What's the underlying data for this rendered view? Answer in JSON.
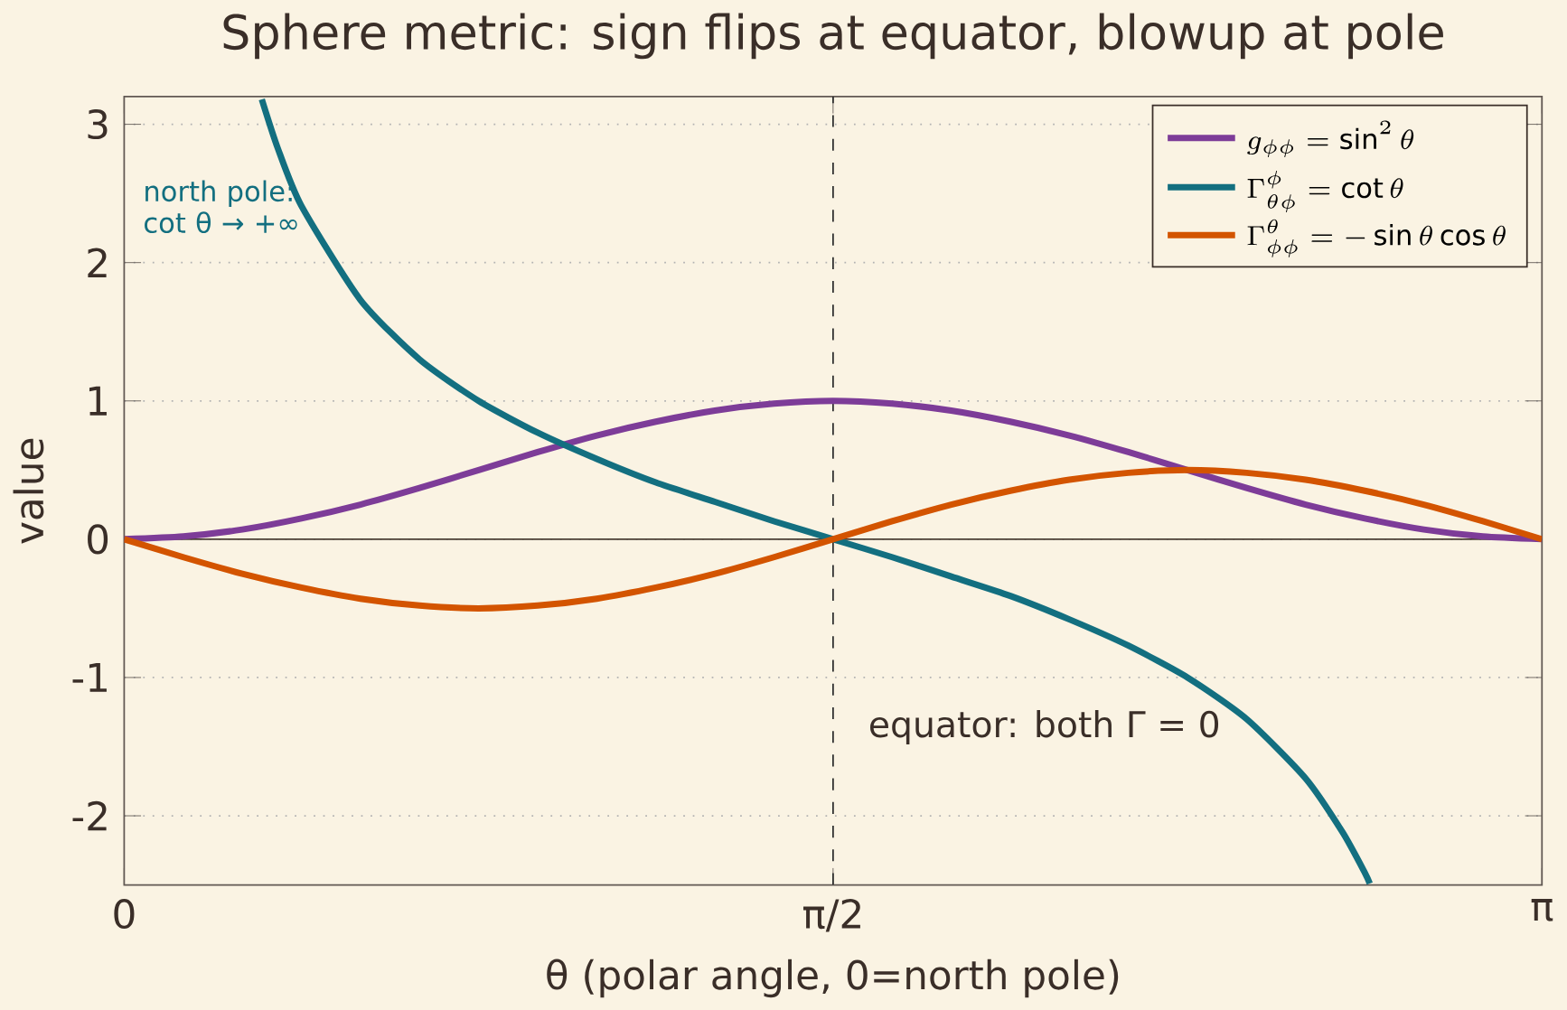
{
  "chart_data": {
    "type": "line",
    "title": "Sphere metric: sign flips at equator, blowup at pole",
    "xlabel": "θ (polar angle, 0=north pole)",
    "ylabel": "value",
    "xlim": [
      0,
      3.1416
    ],
    "ylim": [
      -2.5,
      3.2
    ],
    "xticks": [
      0,
      {
        "value": 1.5708,
        "label": "π/2"
      },
      {
        "value": 3.1416,
        "label": "π"
      }
    ],
    "yticks": [
      -2,
      -1,
      0,
      1,
      2,
      3
    ],
    "grid": "y",
    "legend": "top right",
    "series": [
      {
        "name": "g_{\\phi\\phi} = \\sin^2\\theta",
        "color": "#7d3c98",
        "x": [
          0,
          0.1309,
          0.2618,
          0.3927,
          0.5236,
          0.6545,
          0.7854,
          0.9163,
          1.0472,
          1.1781,
          1.309,
          1.4399,
          1.5708,
          1.7017,
          1.8326,
          1.9635,
          2.0944,
          2.2253,
          2.3562,
          2.4871,
          2.618,
          2.7489,
          2.8798,
          3.0107,
          3.1416
        ],
        "values": [
          0,
          0.02,
          0.07,
          0.15,
          0.25,
          0.37,
          0.5,
          0.63,
          0.75,
          0.85,
          0.93,
          0.98,
          1,
          0.98,
          0.93,
          0.85,
          0.75,
          0.63,
          0.5,
          0.37,
          0.25,
          0.15,
          0.07,
          0.02,
          0
        ]
      },
      {
        "name": "\\Gamma^{\\phi}_{\\theta\\phi} = \\cot\\theta",
        "color": "#136f80",
        "x": [
          0.305,
          0.34,
          0.3927,
          0.5236,
          0.6545,
          0.7854,
          0.9163,
          1.0472,
          1.1781,
          1.309,
          1.4399,
          1.5708,
          1.7017,
          1.8326,
          1.9635,
          2.0944,
          2.2253,
          2.3562,
          2.4871,
          2.618,
          2.7,
          2.7489,
          2.76
        ],
        "values": [
          3.18,
          2.83,
          2.41,
          1.73,
          1.3,
          1,
          0.77,
          0.58,
          0.41,
          0.27,
          0.13,
          0,
          -0.13,
          -0.27,
          -0.41,
          -0.58,
          -0.77,
          -1,
          -1.3,
          -1.73,
          -2.12,
          -2.41,
          -2.49
        ]
      },
      {
        "name": "\\Gamma^{\\theta}_{\\phi\\phi} = -\\sin\\theta\\cos\\theta",
        "color": "#d35400",
        "x": [
          0,
          0.1309,
          0.2618,
          0.3927,
          0.5236,
          0.6545,
          0.7854,
          0.9163,
          1.0472,
          1.1781,
          1.309,
          1.4399,
          1.5708,
          1.7017,
          1.8326,
          1.9635,
          2.0944,
          2.2253,
          2.3562,
          2.4871,
          2.618,
          2.7489,
          2.8798,
          3.0107,
          3.1416
        ],
        "values": [
          0,
          -0.13,
          -0.25,
          -0.35,
          -0.43,
          -0.48,
          -0.5,
          -0.48,
          -0.43,
          -0.35,
          -0.25,
          -0.13,
          0,
          0.13,
          0.25,
          0.35,
          0.43,
          0.48,
          0.5,
          0.48,
          0.43,
          0.35,
          0.25,
          0.13,
          0
        ]
      }
    ],
    "ref_lines": [
      {
        "axis": "y",
        "value": 0,
        "color": "#4a3f35",
        "line_style": "solid"
      },
      {
        "axis": "x",
        "value": 1.5708,
        "color": "#2b2b2b",
        "line_style": "dashed"
      }
    ],
    "annotations": [
      "north pole: cot θ → +∞",
      "equator: both Γ = 0"
    ]
  }
}
